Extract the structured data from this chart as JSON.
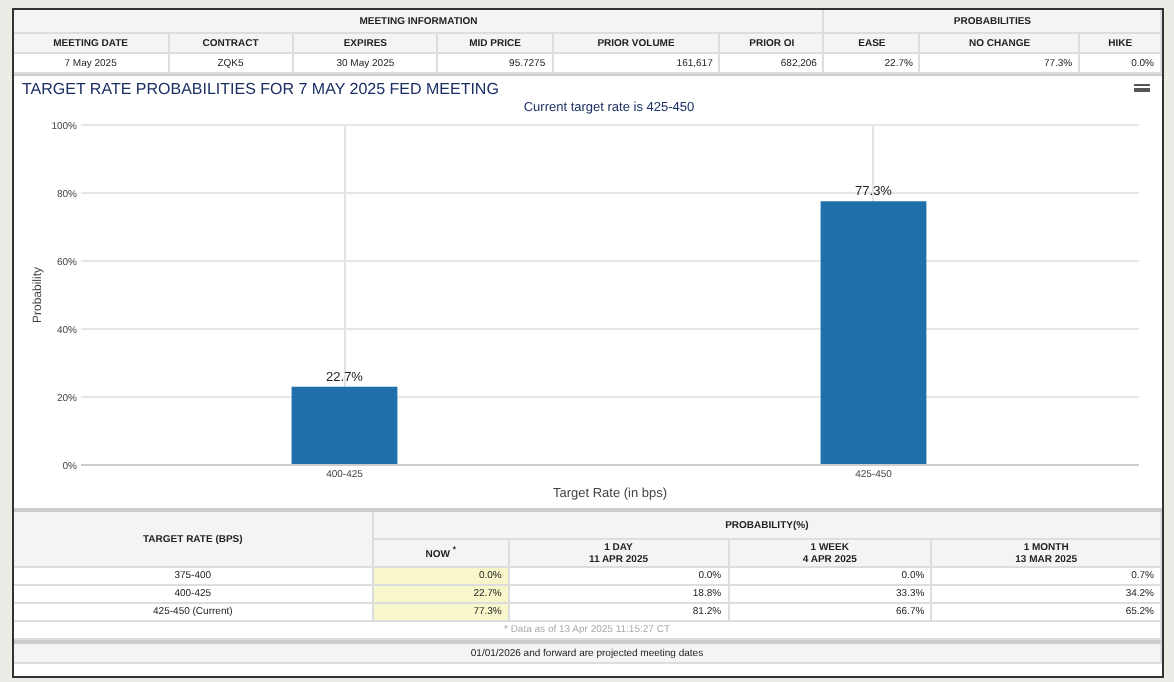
{
  "chart_data": [
    {
      "type": "other",
      "annotations": [
        "MEETING INFORMATION",
        "PROBABILITIES",
        "MEETING DATE",
        "CONTRACT",
        "EXPIRES",
        "MID PRICE",
        "PRIOR VOLUME",
        "PRIOR OI",
        "EASE",
        "NO CHANGE",
        "HIKE",
        "7 May 2025",
        "ZQK5",
        "30 May 2025",
        "95.7275",
        "161,617",
        "682,206",
        "22.7%",
        "77.3%",
        "0.0%"
      ]
    },
    {
      "type": "bar",
      "title": "TARGET RATE PROBABILITIES FOR 7 MAY 2025 FED MEETING",
      "subtitle": "Current target rate is 425-450",
      "xlabel": "Target Rate (in bps)",
      "ylabel": "Probability",
      "categories": [
        "400-425",
        "425-450"
      ],
      "values": [
        22.7,
        77.3
      ],
      "value_labels": [
        "22.7%",
        "77.3%"
      ],
      "color": "#1f70aa",
      "ylim": [
        0,
        100
      ],
      "yticks": [
        {
          "value": 0,
          "label": "0%"
        },
        {
          "value": 20,
          "label": "20%"
        },
        {
          "value": 40,
          "label": "40%"
        },
        {
          "value": 60,
          "label": "60%"
        },
        {
          "value": 80,
          "label": "80%"
        },
        {
          "value": 100,
          "label": "100%"
        }
      ],
      "grid": true
    },
    {
      "type": "other",
      "annotations": [
        "TARGET RATE (BPS)",
        "PROBABILITY(%)",
        "NOW $^{*}$",
        "1 DAY\n11 APR 2025",
        "1 WEEK\n4 APR 2025",
        "1 MONTH\n13 MAR 2025",
        "375-400",
        "0.0%",
        "0.0%",
        "0.0%",
        "0.7%",
        "400-425",
        "22.7%",
        "18.8%",
        "33.3%",
        "34.2%",
        "425-450 (Current)",
        "77.3%",
        "81.2%",
        "66.7%",
        "65.2%",
        "* Data as of 13 Apr 2025 11:15:27 CT",
        "01/01/2026 and forward are projected meeting dates"
      ]
    }
  ]
}
